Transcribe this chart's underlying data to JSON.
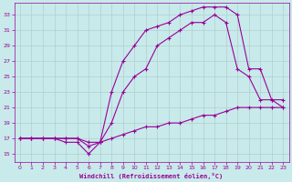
{
  "xlabel": "Windchill (Refroidissement éolien,°C)",
  "ylabel": "",
  "bg_color": "#c8eaea",
  "line_color": "#990099",
  "grid_color": "#b0d0d0",
  "x_ticks": [
    0,
    1,
    2,
    3,
    4,
    5,
    6,
    7,
    8,
    9,
    10,
    11,
    12,
    13,
    14,
    15,
    16,
    17,
    18,
    19,
    20,
    21,
    22,
    23
  ],
  "y_ticks": [
    15,
    17,
    19,
    21,
    23,
    25,
    27,
    29,
    31,
    33
  ],
  "xlim": [
    -0.5,
    23.5
  ],
  "ylim": [
    14.0,
    34.5
  ],
  "line1_x": [
    0,
    1,
    2,
    3,
    4,
    5,
    6,
    7,
    8,
    9,
    10,
    11,
    12,
    13,
    14,
    15,
    16,
    17,
    18,
    19,
    20,
    21,
    22,
    23
  ],
  "line1_y": [
    17,
    17,
    17,
    17,
    17,
    17,
    16.5,
    16.5,
    17,
    17.5,
    18,
    18.5,
    18.5,
    19,
    19,
    19.5,
    20,
    20,
    20.5,
    21,
    21,
    21,
    21,
    21
  ],
  "line2_x": [
    0,
    1,
    2,
    3,
    4,
    5,
    6,
    7,
    8,
    9,
    10,
    11,
    12,
    13,
    14,
    15,
    16,
    17,
    18,
    19,
    20,
    21,
    22,
    23
  ],
  "line2_y": [
    17,
    17,
    17,
    17,
    16.5,
    16.5,
    15,
    16.5,
    19,
    23,
    25,
    26,
    29,
    30,
    31,
    32,
    32,
    33,
    32,
    26,
    25,
    22,
    22,
    21
  ],
  "line3_x": [
    0,
    1,
    2,
    3,
    4,
    5,
    6,
    7,
    8,
    9,
    10,
    11,
    12,
    13,
    14,
    15,
    16,
    17,
    18,
    19,
    20,
    21,
    22,
    23
  ],
  "line3_y": [
    17,
    17,
    17,
    17,
    17,
    17,
    16,
    16.5,
    23,
    27,
    29,
    31,
    31.5,
    32,
    33,
    33.5,
    34,
    34,
    34,
    33,
    26,
    26,
    22,
    22
  ]
}
